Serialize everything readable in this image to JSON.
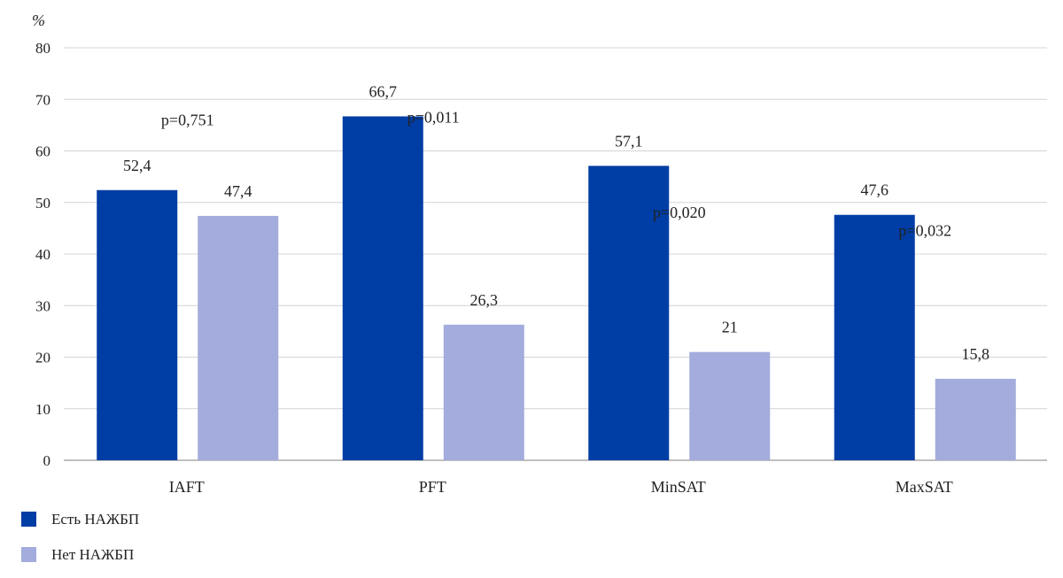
{
  "chart_data": {
    "type": "bar",
    "ylabel": "%",
    "ylim": [
      0,
      80
    ],
    "yticks": [
      "0",
      "10",
      "20",
      "30",
      "40",
      "50",
      "60",
      "70",
      "80"
    ],
    "grid": true,
    "legend_position": "bottom-left",
    "categories": [
      "IAFT",
      "PFT",
      "MinSAT",
      "MaxSAT"
    ],
    "series": [
      {
        "name": "Есть НАЖБП",
        "color": "#003da5",
        "values": [
          52.4,
          66.7,
          57.1,
          47.6
        ],
        "value_labels": [
          "52,4",
          "66,7",
          "57,1",
          "47,6"
        ]
      },
      {
        "name": "Нет НАЖБП",
        "color": "#a3acdc",
        "values": [
          47.4,
          26.3,
          21,
          15.8
        ],
        "value_labels": [
          "47,4",
          "26,3",
          "21",
          "15,8"
        ]
      }
    ],
    "annotations": [
      {
        "category": "IAFT",
        "text": "p=0,751",
        "y": 65
      },
      {
        "category": "PFT",
        "text": "p=0,011",
        "y": 65.5
      },
      {
        "category": "MinSAT",
        "text": "p=0,020",
        "y": 47
      },
      {
        "category": "MaxSAT",
        "text": "p=0,032",
        "y": 43.5
      }
    ],
    "colors": {
      "grid": "#d4d4d4",
      "axis": "#999999"
    }
  }
}
